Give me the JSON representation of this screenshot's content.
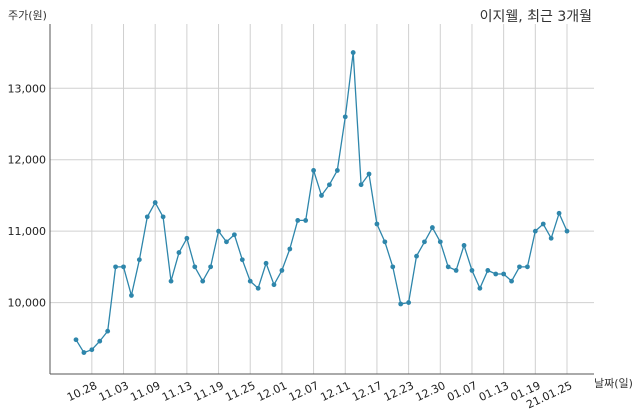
{
  "chart_data": {
    "type": "line",
    "title": "이지웰, 최근 3개월",
    "ylabel": "주가(원)",
    "xlabel": "날짜(일)",
    "ylim": [
      9000,
      13900
    ],
    "yticks": [
      10000,
      11000,
      12000,
      13000
    ],
    "ytick_labels": [
      "10,000",
      "11,000",
      "12,000",
      "13,000"
    ],
    "xtick_labels": [
      "10.28",
      "11.03",
      "11.09",
      "11.13",
      "11.19",
      "11.25",
      "12.01",
      "12.07",
      "12.11",
      "12.17",
      "12.23",
      "12.30",
      "01.07",
      "01.13",
      "01.19",
      "21.01.25"
    ],
    "grid": true,
    "colors": {
      "line": "#2e86ab",
      "grid": "#d0d0d0",
      "axis": "#555555"
    },
    "series": [
      {
        "values": [
          9480,
          9300,
          9340,
          9460,
          9600,
          10500,
          10500,
          10100,
          10600,
          11200,
          11400,
          11200,
          10300,
          10700,
          10900,
          10500,
          10300,
          10500,
          11000,
          10850,
          10950,
          10600,
          10300,
          10200,
          10550,
          10250,
          10450,
          10750,
          11150,
          11150,
          11850,
          11500,
          11650,
          11850,
          12600,
          13500,
          11650,
          11800,
          11100,
          10850,
          10500,
          9980,
          10000,
          10650,
          10850,
          11050,
          10850,
          10500,
          10450,
          10800,
          10450,
          10200,
          10450,
          10400,
          10400,
          10300,
          10500,
          10500,
          11000,
          11100,
          10900,
          11250,
          11000
        ]
      }
    ]
  }
}
